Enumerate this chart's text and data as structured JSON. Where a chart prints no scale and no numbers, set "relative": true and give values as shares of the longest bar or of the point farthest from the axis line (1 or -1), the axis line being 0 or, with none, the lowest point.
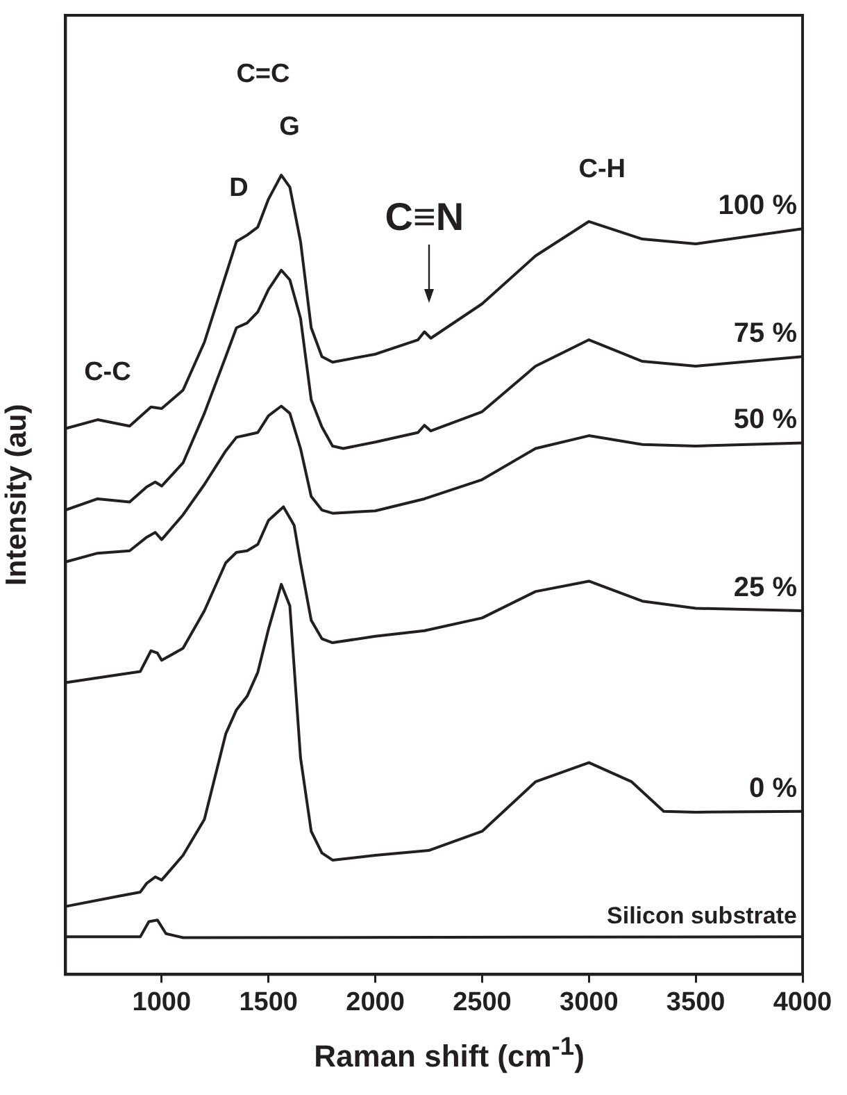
{
  "chart_data": {
    "type": "line",
    "xlabel": "Raman shift (cm$^{-1}$)",
    "ylabel": "Intensity (au)",
    "relative": true,
    "xlim": [
      550,
      4000
    ],
    "xticks": [
      1000,
      1500,
      2000,
      2500,
      3000,
      3500,
      4000
    ],
    "grid": false,
    "legend": false,
    "marker": "none",
    "line_style": "solid",
    "tick_labels": "x",
    "series": [
      {
        "name": "100 %",
        "color": "#231f20",
        "x": [
          550,
          700,
          850,
          950,
          1000,
          1100,
          1200,
          1300,
          1350,
          1400,
          1450,
          1500,
          1560,
          1600,
          1650,
          1700,
          1750,
          1800,
          2000,
          2200,
          2230,
          2260,
          2500,
          2750,
          3000,
          3250,
          3500,
          4000
        ],
        "values": [
          0.683,
          0.694,
          0.686,
          0.71,
          0.708,
          0.731,
          0.791,
          0.875,
          0.917,
          0.925,
          0.935,
          0.97,
          1,
          0.985,
          0.917,
          0.809,
          0.773,
          0.766,
          0.776,
          0.794,
          0.804,
          0.796,
          0.839,
          0.899,
          0.942,
          0.92,
          0.914,
          0.933
        ]
      },
      {
        "name": "75 %",
        "color": "#231f20",
        "x": [
          550,
          700,
          850,
          930,
          970,
          1000,
          1100,
          1200,
          1300,
          1350,
          1400,
          1450,
          1500,
          1560,
          1600,
          1650,
          1700,
          1750,
          1800,
          1850,
          2000,
          2200,
          2230,
          2260,
          2500,
          2750,
          3000,
          3250,
          3500,
          4000
        ],
        "values": [
          0.581,
          0.595,
          0.591,
          0.61,
          0.616,
          0.611,
          0.64,
          0.702,
          0.773,
          0.809,
          0.815,
          0.829,
          0.857,
          0.881,
          0.869,
          0.821,
          0.719,
          0.685,
          0.661,
          0.658,
          0.666,
          0.678,
          0.687,
          0.68,
          0.704,
          0.761,
          0.794,
          0.767,
          0.761,
          0.773
        ]
      },
      {
        "name": "50 %",
        "color": "#231f20",
        "x": [
          550,
          700,
          850,
          930,
          970,
          1000,
          1100,
          1200,
          1300,
          1350,
          1400,
          1450,
          1500,
          1560,
          1600,
          1650,
          1700,
          1750,
          1800,
          2000,
          2230,
          2500,
          2750,
          3000,
          3250,
          3500,
          4000
        ],
        "values": [
          0.516,
          0.527,
          0.53,
          0.547,
          0.553,
          0.544,
          0.575,
          0.613,
          0.655,
          0.672,
          0.675,
          0.678,
          0.699,
          0.711,
          0.702,
          0.658,
          0.598,
          0.581,
          0.577,
          0.58,
          0.595,
          0.619,
          0.658,
          0.674,
          0.663,
          0.661,
          0.665
        ]
      },
      {
        "name": "25 %",
        "color": "#231f20",
        "x": [
          550,
          800,
          900,
          950,
          980,
          1000,
          1100,
          1200,
          1300,
          1350,
          1400,
          1450,
          1500,
          1570,
          1620,
          1650,
          1700,
          1750,
          1800,
          2000,
          2230,
          2500,
          2750,
          3000,
          3250,
          3500,
          4000
        ],
        "values": [
          0.365,
          0.375,
          0.379,
          0.405,
          0.402,
          0.393,
          0.408,
          0.455,
          0.515,
          0.528,
          0.53,
          0.538,
          0.568,
          0.585,
          0.562,
          0.515,
          0.443,
          0.42,
          0.415,
          0.423,
          0.43,
          0.446,
          0.479,
          0.492,
          0.467,
          0.458,
          0.455
        ]
      },
      {
        "name": "0 %",
        "color": "#231f20",
        "x": [
          550,
          800,
          900,
          930,
          970,
          1000,
          1100,
          1200,
          1300,
          1350,
          1400,
          1450,
          1500,
          1560,
          1600,
          1650,
          1700,
          1750,
          1800,
          2000,
          2250,
          2500,
          2750,
          3000,
          3200,
          3350,
          3500,
          4000
        ],
        "values": [
          0.085,
          0.098,
          0.103,
          0.114,
          0.122,
          0.118,
          0.149,
          0.194,
          0.301,
          0.331,
          0.348,
          0.378,
          0.432,
          0.488,
          0.461,
          0.271,
          0.179,
          0.152,
          0.143,
          0.149,
          0.155,
          0.179,
          0.241,
          0.265,
          0.241,
          0.204,
          0.203,
          0.204
        ]
      },
      {
        "name": "Silicon substrate",
        "color": "#231f20",
        "x": [
          550,
          900,
          940,
          980,
          1020,
          1100,
          4000
        ],
        "values": [
          0.047,
          0.047,
          0.066,
          0.068,
          0.051,
          0.046,
          0.047
        ]
      }
    ],
    "annotations": [
      "C-C",
      "C=C",
      "G",
      "D",
      "C≡N",
      "C-H"
    ]
  }
}
